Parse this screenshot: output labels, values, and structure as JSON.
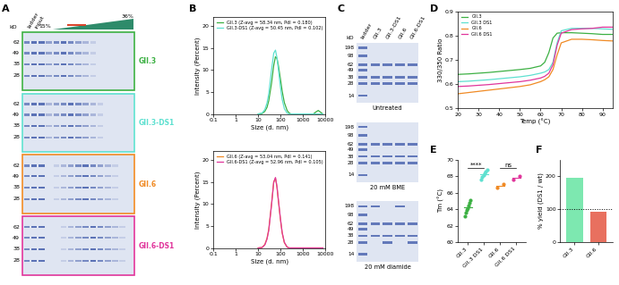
{
  "panel_labels": [
    "A",
    "B",
    "C",
    "D",
    "E",
    "F"
  ],
  "gel_A": {
    "unit": "kD",
    "header": [
      "ladder",
      "input"
    ],
    "gradient": [
      "15%",
      "36%"
    ],
    "kd": [
      62,
      49,
      38,
      28
    ],
    "samples": [
      {
        "name": "GII.3",
        "color": "#3cb043"
      },
      {
        "name": "GII.3-DS1",
        "color": "#5ee0d0"
      },
      {
        "name": "GII.6",
        "color": "#f08a24"
      },
      {
        "name": "GII.6-DS1",
        "color": "#e0359b"
      }
    ]
  },
  "gel_C": {
    "unit": "kD",
    "kd": [
      198,
      98,
      62,
      49,
      38,
      28,
      14
    ],
    "lanes": [
      "ladder",
      "GII.3",
      "GII.3-DS1",
      "GII.6",
      "GII.6-DS1"
    ],
    "conditions": [
      "Untreated",
      "20 mM BME",
      "20 mM diamide"
    ]
  },
  "chart_data": [
    {
      "type": "line",
      "log": "x",
      "x_label": "Size (d. nm)",
      "y_label": "Intensity (Percent)",
      "x": [
        10,
        15,
        20,
        25,
        30,
        40,
        50,
        60,
        70,
        80,
        100,
        120,
        150,
        200,
        250,
        300,
        400,
        500,
        3000,
        4000,
        5000,
        6000,
        8000
      ],
      "series": [
        {
          "name": "GII.3 (Z-avg = 58.34 nm, PdI = 0.180)",
          "color": "#3cb043",
          "values": [
            0,
            0.1,
            0.6,
            1.5,
            3.0,
            7.0,
            11.0,
            13.0,
            12.6,
            11.2,
            8.0,
            5.2,
            2.6,
            0.8,
            0.2,
            0,
            0,
            0,
            0,
            0.5,
            0.8,
            0.5,
            0
          ]
        },
        {
          "name": "GII.3-DS1 (Z-avg = 50.45 nm, PdI = 0.102)",
          "color": "#5ee0d0",
          "values": [
            0,
            0.2,
            1.0,
            2.5,
            4.6,
            10.0,
            13.8,
            14.5,
            12.8,
            10.4,
            6.2,
            3.3,
            1.2,
            0.2,
            0,
            0,
            0,
            0,
            0,
            0,
            0,
            0,
            0
          ]
        }
      ],
      "xlim": [
        0.1,
        10000
      ],
      "xticks": [
        0.1,
        1,
        10,
        100,
        1000,
        10000
      ],
      "ylim": [
        0,
        22
      ],
      "yticks": [
        0,
        5,
        10,
        15,
        20
      ],
      "legend": "upper left"
    },
    {
      "type": "line",
      "log": "x",
      "x_label": "Size (d. nm)",
      "y_label": "Intensity (Percent)",
      "x": [
        10,
        15,
        20,
        25,
        30,
        40,
        50,
        60,
        70,
        80,
        100,
        120,
        150,
        200,
        250,
        300,
        400,
        500,
        3000,
        4000,
        5000,
        6000,
        8000
      ],
      "series": [
        {
          "name": "GII.6 (Z-avg = 53.04 nm, PdI = 0.141)",
          "color": "#f08a24",
          "values": [
            0,
            0.1,
            0.8,
            2.2,
            4.2,
            10.0,
            15.0,
            15.8,
            13.8,
            11.0,
            6.5,
            3.4,
            1.2,
            0.2,
            0,
            0,
            0,
            0,
            0,
            0,
            0,
            0,
            0
          ]
        },
        {
          "name": "GII.6-DS1 (Z-avg = 52.96 nm, PdI = 0.105)",
          "color": "#e0359b",
          "values": [
            0,
            0.1,
            0.7,
            2.0,
            4.0,
            9.8,
            14.9,
            16.0,
            14.0,
            11.2,
            6.7,
            3.5,
            1.3,
            0.2,
            0,
            0,
            0,
            0,
            0,
            0,
            0,
            0,
            0
          ]
        }
      ],
      "xlim": [
        0.1,
        10000
      ],
      "xticks": [
        0.1,
        1,
        10,
        100,
        1000,
        10000
      ],
      "ylim": [
        0,
        22
      ],
      "yticks": [
        0,
        5,
        10,
        15,
        20
      ],
      "legend": "upper left"
    },
    {
      "type": "line",
      "x_label": "Temp (°C)",
      "y_label": "330/350 Ratio",
      "x": [
        20,
        25,
        30,
        35,
        40,
        45,
        50,
        55,
        60,
        62,
        64,
        66,
        68,
        70,
        75,
        80,
        85,
        90,
        95
      ],
      "series": [
        {
          "name": "GII.3",
          "color": "#3cb043",
          "values": [
            0.64,
            0.642,
            0.645,
            0.648,
            0.652,
            0.656,
            0.66,
            0.665,
            0.675,
            0.69,
            0.73,
            0.79,
            0.81,
            0.812,
            0.812,
            0.81,
            0.808,
            0.805,
            0.805
          ]
        },
        {
          "name": "GII.3 DS1",
          "color": "#5ee0d0",
          "values": [
            0.61,
            0.612,
            0.615,
            0.618,
            0.622,
            0.626,
            0.63,
            0.636,
            0.645,
            0.65,
            0.66,
            0.69,
            0.77,
            0.82,
            0.83,
            0.83,
            0.83,
            0.828,
            0.826
          ]
        },
        {
          "name": "GII.6",
          "color": "#f08a24",
          "values": [
            0.56,
            0.565,
            0.57,
            0.575,
            0.58,
            0.585,
            0.59,
            0.597,
            0.61,
            0.618,
            0.63,
            0.66,
            0.72,
            0.77,
            0.785,
            0.785,
            0.783,
            0.78,
            0.778
          ]
        },
        {
          "name": "GII.6 DS1",
          "color": "#e0359b",
          "values": [
            0.59,
            0.592,
            0.595,
            0.598,
            0.602,
            0.606,
            0.61,
            0.616,
            0.625,
            0.632,
            0.645,
            0.68,
            0.76,
            0.81,
            0.825,
            0.828,
            0.83,
            0.835,
            0.835
          ]
        }
      ],
      "xlim": [
        20,
        95
      ],
      "xticks": [
        20,
        30,
        40,
        50,
        60,
        70,
        80,
        90
      ],
      "ylim": [
        0.5,
        0.9
      ],
      "yticks": [
        0.5,
        0.6,
        0.7,
        0.8,
        0.9
      ],
      "legend": "upper left"
    },
    {
      "type": "strip",
      "y_label": "Tm (°C)",
      "categories": [
        "GII.3",
        "GII.3 DS1",
        "GII.6",
        "GII.6 DS1"
      ],
      "values": [
        [
          63.2,
          63.6,
          63.9,
          64.1,
          64.4,
          64.8,
          65.1
        ],
        [
          67.6,
          67.9,
          68.1,
          68.3,
          68.6,
          68.8
        ],
        [
          66.6,
          67.0
        ],
        [
          67.6,
          68.0
        ]
      ],
      "means": [
        64.2,
        68.2,
        66.8,
        67.8
      ],
      "colors": [
        "#3cb043",
        "#5ee0d0",
        "#f08a24",
        "#e0359b"
      ],
      "annotations": [
        {
          "text": "****",
          "from": "GII.3",
          "to": "GII.3 DS1",
          "y": 69
        },
        {
          "text": "ns",
          "from": "GII.6",
          "to": "GII.6 DS1",
          "y": 69
        }
      ],
      "ylim": [
        60,
        70
      ],
      "yticks": [
        60,
        62,
        64,
        66,
        68,
        70
      ]
    },
    {
      "type": "bar",
      "y_label": "% yield (DS1 / wt)",
      "categories": [
        "GII.3",
        "GII.6"
      ],
      "values": [
        195,
        92
      ],
      "colors": [
        "#7de8b0",
        "#e8705f"
      ],
      "reference_line": 100,
      "ylim": [
        0,
        250
      ],
      "yticks": [
        0,
        100,
        200
      ]
    }
  ]
}
